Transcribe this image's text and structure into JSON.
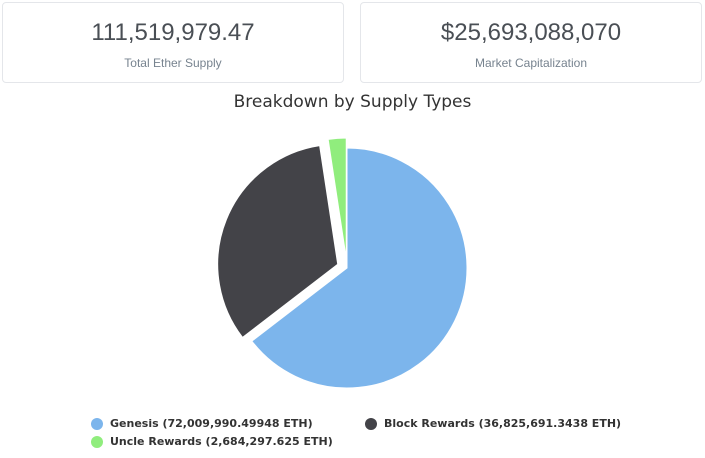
{
  "stats": {
    "supply": {
      "value": "111,519,979.47",
      "label": "Total Ether Supply"
    },
    "market_cap": {
      "value": "$25,693,088,070",
      "label": "Market Capitalization"
    }
  },
  "chart_data": {
    "type": "pie",
    "title": "Breakdown by Supply Types",
    "sliced": true,
    "slices": [
      {
        "name": "Genesis",
        "value": 72009990.49948,
        "color": "#7cb5ec",
        "legend": "Genesis (72,009,990.49948 ETH)"
      },
      {
        "name": "Block Rewards",
        "value": 36825691.3438,
        "color": "#434348",
        "legend": "Block Rewards (36,825,691.3438 ETH)"
      },
      {
        "name": "Uncle Rewards",
        "value": 2684297.625,
        "color": "#90ed7d",
        "legend": "Uncle Rewards (2,684,297.625 ETH)"
      }
    ],
    "legend_position": "bottom"
  }
}
